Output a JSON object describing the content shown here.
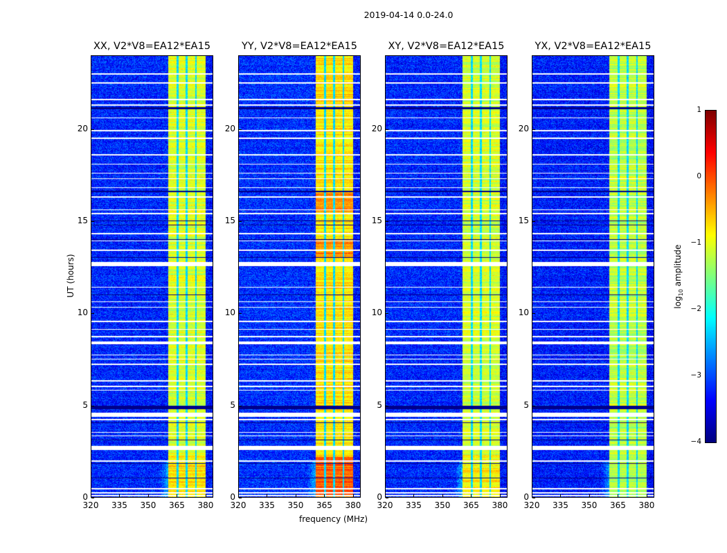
{
  "suptitle": "2019-04-14 0.0-24.0",
  "chart_data": {
    "type": "heatmap",
    "xlabel": "frequency (MHz)",
    "ylabel": "UT (hours)",
    "xlim": [
      320,
      384
    ],
    "ylim": [
      0,
      24
    ],
    "xticks": [
      "320",
      "335",
      "350",
      "365",
      "380"
    ],
    "xtick_values": [
      320,
      335,
      350,
      365,
      380
    ],
    "yticks": [
      "0",
      "5",
      "10",
      "15",
      "20"
    ],
    "ytick_values": [
      0,
      5,
      10,
      15,
      20
    ],
    "panels": [
      {
        "title": "XX, V2*V8=EA12*EA15",
        "band_level": -1.05,
        "bg_level": -3.2
      },
      {
        "title": "YY, V2*V8=EA12*EA15",
        "band_level": -0.75,
        "bg_level": -3.15
      },
      {
        "title": "XY, V2*V8=EA12*EA15",
        "band_level": -1.1,
        "bg_level": -3.2
      },
      {
        "title": "YX, V2*V8=EA12*EA15",
        "band_level": -1.2,
        "bg_level": -3.25
      }
    ],
    "bright_band_mhz": [
      360.5,
      380.5
    ],
    "dark_channels_mhz": [
      365.5,
      370.3,
      375.2
    ],
    "flagged_white_hours": [
      [
        0.05,
        0.12
      ],
      [
        0.2,
        0.26
      ],
      [
        0.42,
        0.5
      ],
      [
        1.93,
        2.0
      ],
      [
        2.55,
        2.8
      ],
      [
        3.3,
        3.36
      ],
      [
        3.48,
        3.55
      ],
      [
        4.18,
        4.24
      ],
      [
        4.38,
        4.58
      ],
      [
        5.78,
        5.84
      ],
      [
        6.0,
        6.06
      ],
      [
        6.3,
        6.35
      ],
      [
        7.18,
        7.25
      ],
      [
        7.48,
        7.54
      ],
      [
        7.7,
        7.75
      ],
      [
        8.3,
        8.45
      ],
      [
        8.7,
        8.76
      ],
      [
        9.1,
        9.15
      ],
      [
        9.5,
        9.58
      ],
      [
        10.3,
        10.35
      ],
      [
        10.6,
        10.66
      ],
      [
        11.4,
        11.45
      ],
      [
        12.55,
        12.8
      ],
      [
        13.4,
        13.46
      ],
      [
        13.9,
        13.95
      ],
      [
        14.3,
        14.36
      ],
      [
        15.4,
        15.46
      ],
      [
        15.6,
        15.66
      ],
      [
        16.3,
        16.36
      ],
      [
        16.8,
        16.85
      ],
      [
        17.3,
        17.35
      ],
      [
        17.6,
        17.66
      ],
      [
        18.1,
        18.15
      ],
      [
        18.6,
        18.66
      ],
      [
        19.5,
        19.56
      ],
      [
        19.9,
        19.96
      ],
      [
        20.6,
        20.65
      ],
      [
        21.3,
        21.38
      ],
      [
        21.6,
        21.66
      ],
      [
        22.5,
        22.56
      ],
      [
        23.0,
        23.05
      ]
    ],
    "flagged_black_hours": [
      [
        1.0,
        1.04
      ],
      [
        1.8,
        1.84
      ],
      [
        3.1,
        3.14
      ],
      [
        4.04,
        4.08
      ],
      [
        4.78,
        4.95
      ],
      [
        11.0,
        11.04
      ],
      [
        13.0,
        13.04
      ],
      [
        14.0,
        14.04
      ],
      [
        14.8,
        14.84
      ],
      [
        15.0,
        15.04
      ],
      [
        16.6,
        16.66
      ],
      [
        21.1,
        21.2
      ]
    ],
    "colorbar": {
      "label": "log10 amplitude",
      "label_main": "log",
      "label_sub": "10",
      "label_rest": " amplitude",
      "range": [
        -4,
        1
      ],
      "ticks": [
        "1",
        "0",
        "−1",
        "−2",
        "−3",
        "−4"
      ],
      "tick_values": [
        1,
        0,
        -1,
        -2,
        -3,
        -4
      ],
      "colormap": "jet"
    }
  }
}
